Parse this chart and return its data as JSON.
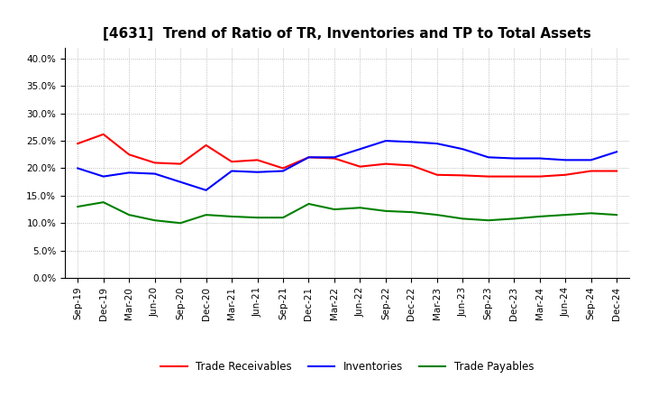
{
  "title": "[4631]  Trend of Ratio of TR, Inventories and TP to Total Assets",
  "labels": [
    "Sep-19",
    "Dec-19",
    "Mar-20",
    "Jun-20",
    "Sep-20",
    "Dec-20",
    "Mar-21",
    "Jun-21",
    "Sep-21",
    "Dec-21",
    "Mar-22",
    "Jun-22",
    "Sep-22",
    "Dec-22",
    "Mar-23",
    "Jun-23",
    "Sep-23",
    "Dec-23",
    "Mar-24",
    "Jun-24",
    "Sep-24",
    "Dec-24"
  ],
  "trade_receivables": [
    24.5,
    26.2,
    22.5,
    21.0,
    20.8,
    24.2,
    21.2,
    21.5,
    20.0,
    22.0,
    21.8,
    20.3,
    20.8,
    20.5,
    18.8,
    18.7,
    18.5,
    18.5,
    18.5,
    18.8,
    19.5,
    19.5
  ],
  "inventories": [
    20.0,
    18.5,
    19.2,
    19.0,
    17.5,
    16.0,
    19.5,
    19.3,
    19.5,
    22.0,
    22.0,
    23.5,
    25.0,
    24.8,
    24.5,
    23.5,
    22.0,
    21.8,
    21.8,
    21.5,
    21.5,
    23.0
  ],
  "trade_payables": [
    13.0,
    13.8,
    11.5,
    10.5,
    10.0,
    11.5,
    11.2,
    11.0,
    11.0,
    13.5,
    12.5,
    12.8,
    12.2,
    12.0,
    11.5,
    10.8,
    10.5,
    10.8,
    11.2,
    11.5,
    11.8,
    11.5
  ],
  "tr_color": "#ff0000",
  "inv_color": "#0000ff",
  "tp_color": "#008000",
  "ylim": [
    0,
    42
  ],
  "yticks": [
    0,
    5,
    10,
    15,
    20,
    25,
    30,
    35,
    40
  ],
  "background_color": "#ffffff",
  "grid_color": "#aaaaaa",
  "title_fontsize": 11,
  "tick_fontsize": 7.5,
  "legend_labels": [
    "Trade Receivables",
    "Inventories",
    "Trade Payables"
  ]
}
